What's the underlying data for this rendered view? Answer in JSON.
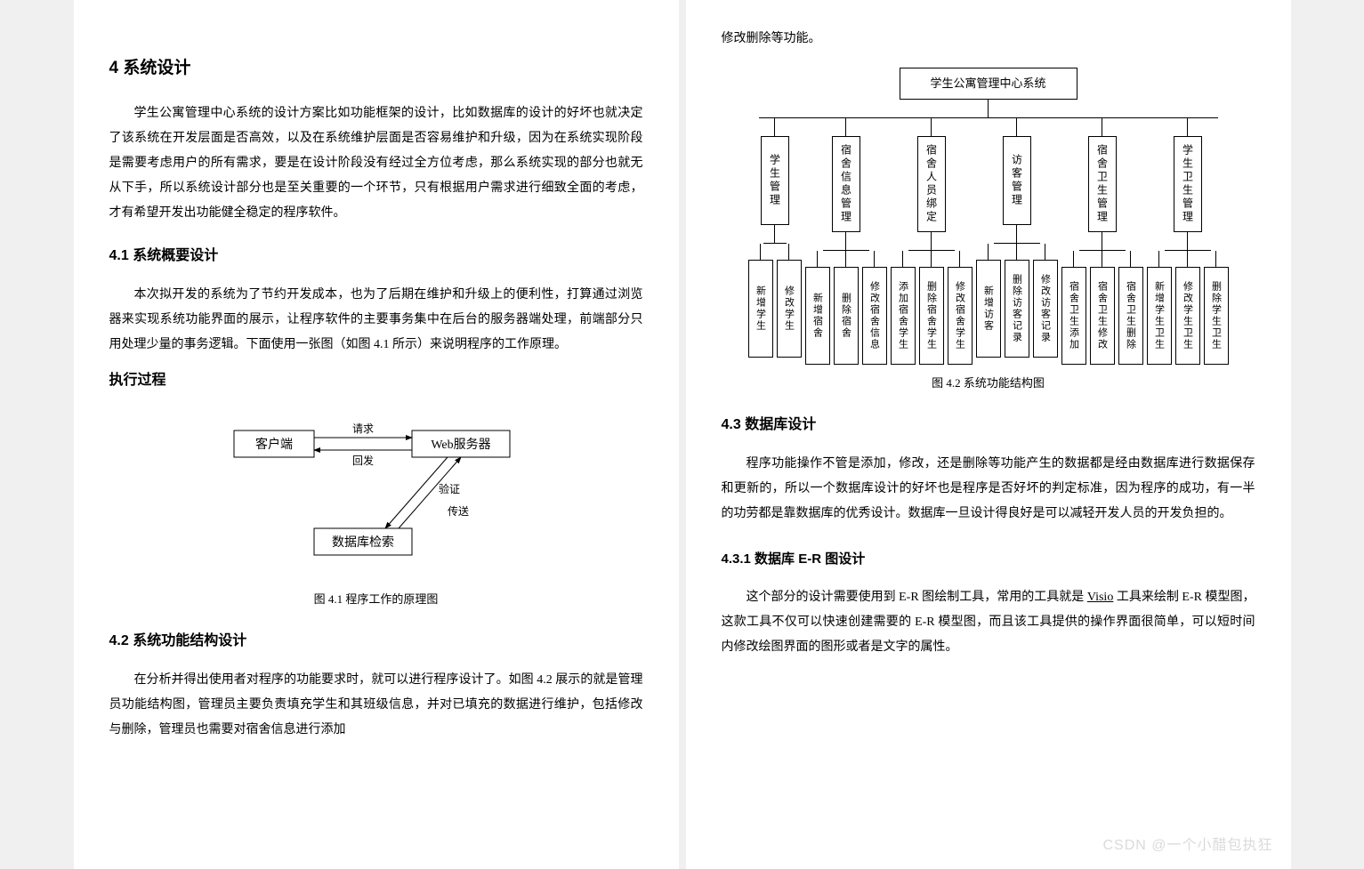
{
  "left": {
    "h2": "4  系统设计",
    "p1": "学生公寓管理中心系统的设计方案比如功能框架的设计，比如数据库的设计的好坏也就决定了该系统在开发层面是否高效，以及在系统维护层面是否容易维护和升级，因为在系统实现阶段是需要考虑用户的所有需求，要是在设计阶段没有经过全方位考虑，那么系统实现的部分也就无从下手，所以系统设计部分也是至关重要的一个环节，只有根据用户需求进行细致全面的考虑，才有希望开发出功能健全稳定的程序软件。",
    "h3_41": "4.1  系统概要设计",
    "p2": "本次拟开发的系统为了节约开发成本，也为了后期在维护和升级上的便利性，打算通过浏览器来实现系统功能界面的展示，让程序软件的主要事务集中在后台的服务器端处理，前端部分只用处理少量的事务逻辑。下面使用一张图（如图 4.1 所示）来说明程序的工作原理。",
    "diag1": {
      "title": "执行过程",
      "client": "客户端",
      "webserver": "Web服务器",
      "db": "数据库检索",
      "req": "请求",
      "resp": "回发",
      "verify": "验证",
      "send": "传送",
      "caption": "图 4.1  程序工作的原理图"
    },
    "h3_42": "4.2  系统功能结构设计",
    "p3": "在分析并得出使用者对程序的功能要求时，就可以进行程序设计了。如图 4.2 展示的就是管理员功能结构图，管理员主要负责填充学生和其班级信息，并对已填充的数据进行维护，包括修改与删除，管理员也需要对宿舍信息进行添加"
  },
  "right": {
    "top_p": "修改删除等功能。",
    "org": {
      "root": "学生公寓管理中心系统",
      "caption": "图 4.2  系统功能结构图",
      "branches": [
        {
          "label": "学生管理",
          "leaves": [
            "新增学生",
            "修改学生"
          ]
        },
        {
          "label": "宿舍信息管理",
          "leaves": [
            "新增宿舍",
            "删除宿舍",
            "修改宿舍信息"
          ]
        },
        {
          "label": "宿舍人员绑定",
          "leaves": [
            "添加宿舍学生",
            "删除宿舍学生",
            "修改宿舍学生"
          ]
        },
        {
          "label": "访客管理",
          "leaves": [
            "新增访客",
            "删除访客记录",
            "修改访客记录"
          ]
        },
        {
          "label": "宿舍卫生管理",
          "leaves": [
            "宿舍卫生添加",
            "宿舍卫生修改",
            "宿舍卫生删除"
          ]
        },
        {
          "label": "学生卫生管理",
          "leaves": [
            "新增学生卫生",
            "修改学生卫生",
            "删除学生卫生"
          ]
        }
      ]
    },
    "h3_43": "4.3  数据库设计",
    "p4": "程序功能操作不管是添加，修改，还是删除等功能产生的数据都是经由数据库进行数据保存和更新的，所以一个数据库设计的好坏也是程序是否好坏的判定标准，因为程序的成功，有一半的功劳都是靠数据库的优秀设计。数据库一旦设计得良好是可以减轻开发人员的开发负担的。",
    "h4_431": "4.3.1  数据库 E-R 图设计",
    "p5_pre": "这个部分的设计需要使用到 E-R 图绘制工具，常用的工具就是 ",
    "p5_u": "Visio",
    "p5_post": " 工具来绘制 E-R 模型图，这款工具不仅可以快速创建需要的 E-R 模型图，而且该工具提供的操作界面很简单，可以短时间内修改绘图界面的图形或者是文字的属性。",
    "watermark": "CSDN @一个小醋包执狂"
  },
  "style": {
    "bg": "#ffffff",
    "text": "#000000",
    "border": "#000000",
    "body_font_size_pt": 11,
    "heading_font_family": "SimHei",
    "body_font_family": "SimSun",
    "line_height": 2.0
  }
}
